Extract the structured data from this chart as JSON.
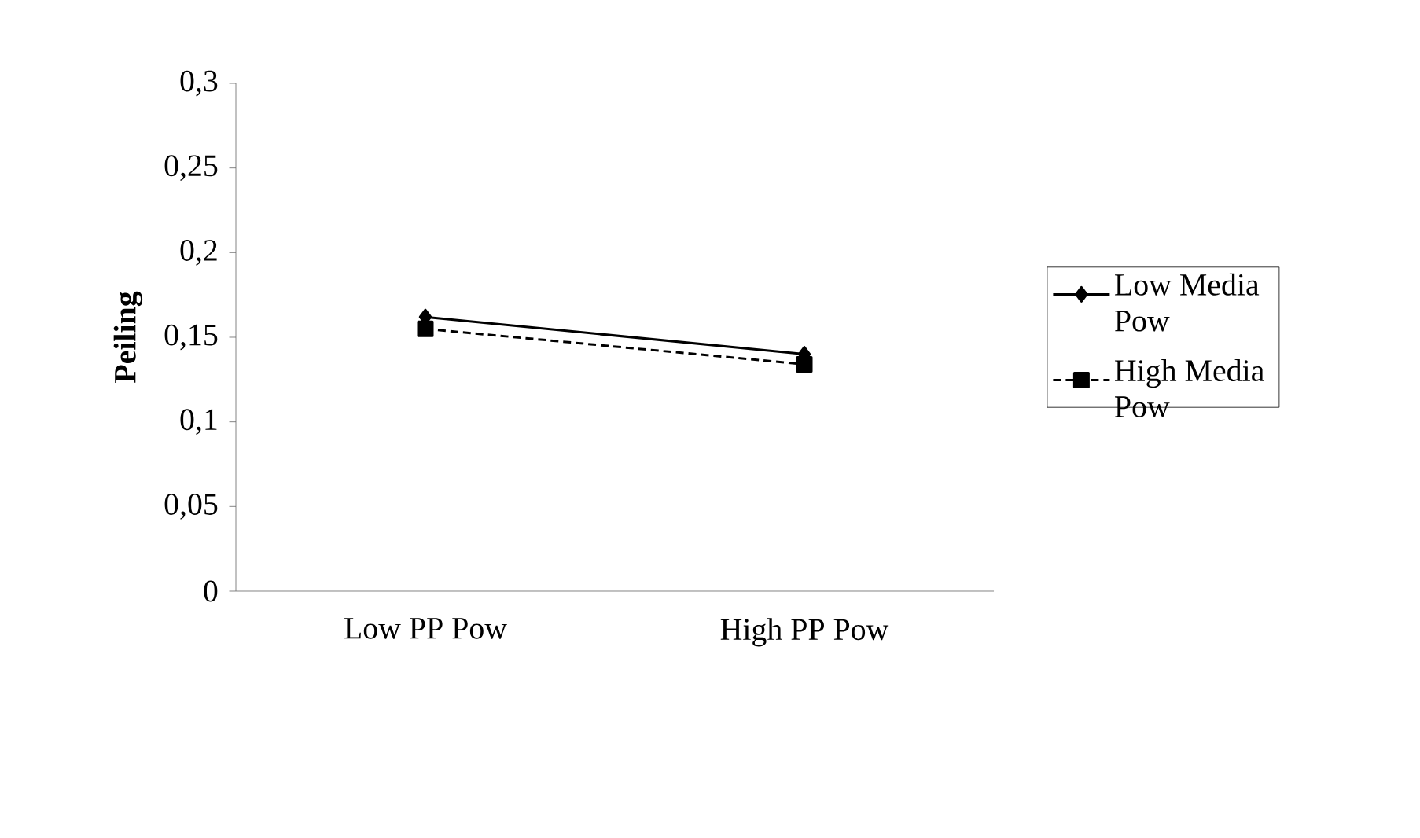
{
  "chart_data": {
    "type": "line",
    "ylabel": "**Peiling**",
    "categories": [
      "Low PP  Pow",
      "High PP  Pow"
    ],
    "series": [
      {
        "name": "Low Media Pow",
        "color": "#000000",
        "values": [
          0.162,
          0.14
        ],
        "marker": "diamond",
        "line_style": "solid"
      },
      {
        "name": "High Media Pow",
        "color": "#000000",
        "values": [
          0.155,
          0.134
        ],
        "marker": "square",
        "line_style": "dashed"
      }
    ],
    "ylim": [
      0,
      0.3
    ],
    "yticks": [
      {
        "value": 0,
        "label": "0"
      },
      {
        "value": 0.05,
        "label": "0,05"
      },
      {
        "value": 0.1,
        "label": "0,1"
      },
      {
        "value": 0.15,
        "label": "0,15"
      },
      {
        "value": 0.2,
        "label": "0,2"
      },
      {
        "value": 0.25,
        "label": "0,25"
      },
      {
        "value": 0.3,
        "label": "0,3"
      }
    ],
    "grid": false,
    "legend": "right"
  }
}
